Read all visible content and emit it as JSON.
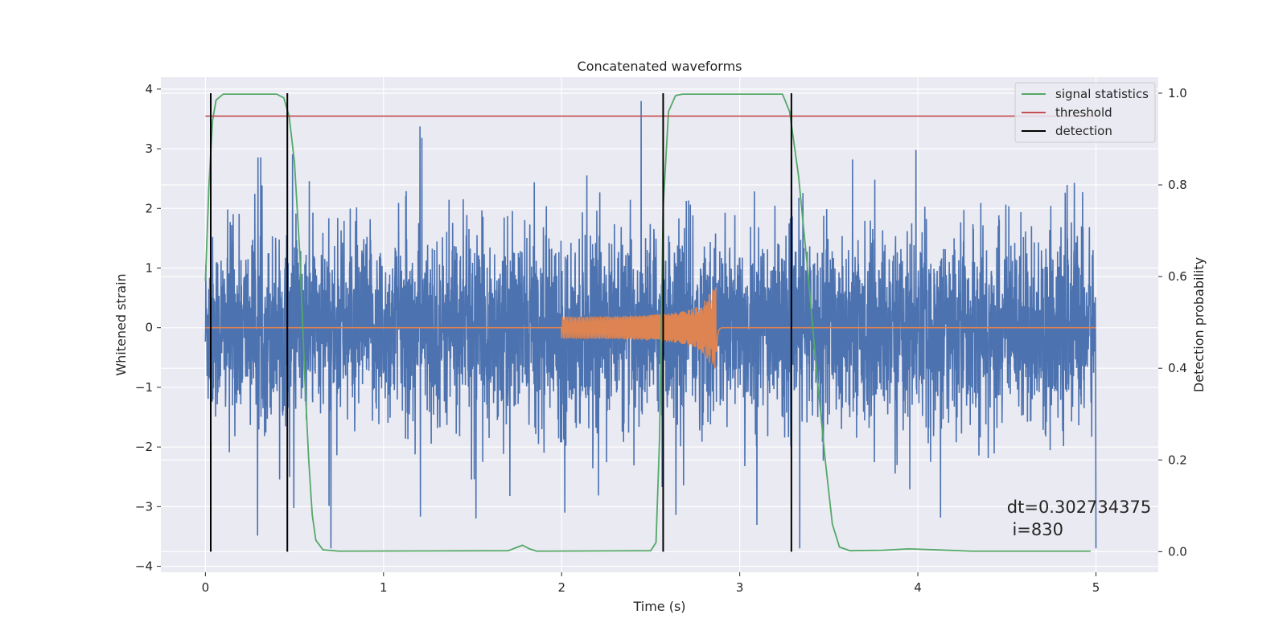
{
  "chart_data": {
    "type": "line",
    "title": "Concatenated waveforms",
    "xlabel": "Time (s)",
    "ylabel_left": "Whitened strain",
    "ylabel_right": "Detection probability",
    "xlim": [
      -0.25,
      5.35
    ],
    "ylim_left": [
      -4.1,
      4.2
    ],
    "ylim_right": [
      -0.045,
      1.035
    ],
    "x_ticks": [
      "0",
      "1",
      "2",
      "3",
      "4",
      "5"
    ],
    "y_left_ticks": [
      "−4",
      "−3",
      "−2",
      "−1",
      "0",
      "1",
      "2",
      "3",
      "4"
    ],
    "y_right_ticks": [
      "0.0",
      "0.2",
      "0.4",
      "0.6",
      "0.8",
      "1.0"
    ],
    "grid": true,
    "legend_position": "top-right",
    "colors": {
      "strain": "#4c72b0",
      "injection": "#dd8452",
      "signal_statistics": "#55a868",
      "threshold": "#c44e52",
      "detection": "#000000",
      "background": "#eaeaf2"
    },
    "series": [
      {
        "name": "",
        "axis": "left",
        "description_kind": "noise",
        "x_range": [
          0,
          5
        ],
        "envelope": {
          "typical_amplitude": 0.75,
          "peak_max": 3.8,
          "peak_min": -3.7
        }
      },
      {
        "name": "",
        "axis": "left",
        "description_kind": "chirp",
        "x_range": [
          0,
          5
        ],
        "chirp_start": 2.0,
        "chirp_merger": 2.87,
        "start_amplitude": 0.18,
        "peak_amplitude": 0.72
      },
      {
        "name": "signal statistics",
        "axis": "right",
        "points": [
          [
            0.0,
            0.59
          ],
          [
            0.02,
            0.8
          ],
          [
            0.04,
            0.94
          ],
          [
            0.06,
            0.985
          ],
          [
            0.1,
            0.998
          ],
          [
            0.4,
            0.998
          ],
          [
            0.44,
            0.99
          ],
          [
            0.47,
            0.95
          ],
          [
            0.5,
            0.85
          ],
          [
            0.53,
            0.65
          ],
          [
            0.56,
            0.36
          ],
          [
            0.58,
            0.2
          ],
          [
            0.6,
            0.08
          ],
          [
            0.62,
            0.025
          ],
          [
            0.66,
            0.004
          ],
          [
            0.75,
            0.001
          ],
          [
            1.7,
            0.002
          ],
          [
            1.74,
            0.008
          ],
          [
            1.78,
            0.014
          ],
          [
            1.82,
            0.006
          ],
          [
            1.86,
            0.001
          ],
          [
            2.5,
            0.002
          ],
          [
            2.53,
            0.02
          ],
          [
            2.55,
            0.25
          ],
          [
            2.57,
            0.75
          ],
          [
            2.6,
            0.96
          ],
          [
            2.64,
            0.995
          ],
          [
            2.68,
            0.998
          ],
          [
            3.24,
            0.998
          ],
          [
            3.28,
            0.96
          ],
          [
            3.33,
            0.82
          ],
          [
            3.38,
            0.62
          ],
          [
            3.43,
            0.4
          ],
          [
            3.48,
            0.2
          ],
          [
            3.52,
            0.06
          ],
          [
            3.56,
            0.01
          ],
          [
            3.62,
            0.002
          ],
          [
            3.8,
            0.003
          ],
          [
            3.95,
            0.006
          ],
          [
            4.1,
            0.004
          ],
          [
            4.3,
            0.001
          ],
          [
            4.97,
            0.001
          ]
        ]
      },
      {
        "name": "threshold",
        "axis": "right",
        "value": 0.95,
        "x_range": [
          0,
          5
        ]
      },
      {
        "name": "detection",
        "axis": "right",
        "x_values": [
          0.03,
          0.46,
          2.57,
          3.29
        ],
        "y_range": [
          0,
          1
        ]
      }
    ],
    "annotations": [
      "dt=0.302734375",
      " i=830"
    ],
    "annotation_anchor": {
      "x": 4.5,
      "y": -3.1
    }
  }
}
